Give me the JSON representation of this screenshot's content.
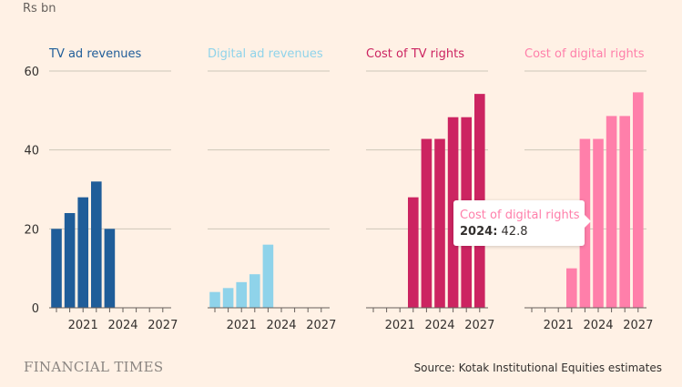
{
  "unit_label": "Rs bn",
  "chart_data": {
    "type": "bar",
    "x": [
      2019,
      2020,
      2021,
      2022,
      2023,
      2024,
      2025,
      2026,
      2027
    ],
    "x_ticks": [
      "2021",
      "2024",
      "2027"
    ],
    "y_ticks": [
      "0",
      "20",
      "40",
      "60"
    ],
    "ylim": [
      0,
      60
    ],
    "grid": true,
    "series": [
      {
        "name": "TV ad revenues",
        "color": "#1f5d99",
        "values": [
          20,
          24,
          28,
          32,
          20,
          null,
          null,
          null,
          null
        ]
      },
      {
        "name": "Digital ad revenues",
        "color": "#8fd3ea",
        "values": [
          4,
          5,
          6.5,
          8.5,
          16,
          null,
          null,
          null,
          null
        ]
      },
      {
        "name": "Cost of TV rights",
        "color": "#cc2461",
        "values": [
          null,
          null,
          null,
          28,
          42.8,
          42.8,
          48.3,
          48.3,
          54.2
        ]
      },
      {
        "name": "Cost of digital rights",
        "color": "#ff7faa",
        "values": [
          null,
          null,
          null,
          10,
          42.8,
          42.8,
          48.6,
          48.6,
          54.6
        ]
      }
    ]
  },
  "tooltip": {
    "series": "Cost of digital rights",
    "year": "2024",
    "value": "42.8"
  },
  "brand": "FINANCIAL TIMES",
  "source": "Source: Kotak Institutional Equities estimates"
}
